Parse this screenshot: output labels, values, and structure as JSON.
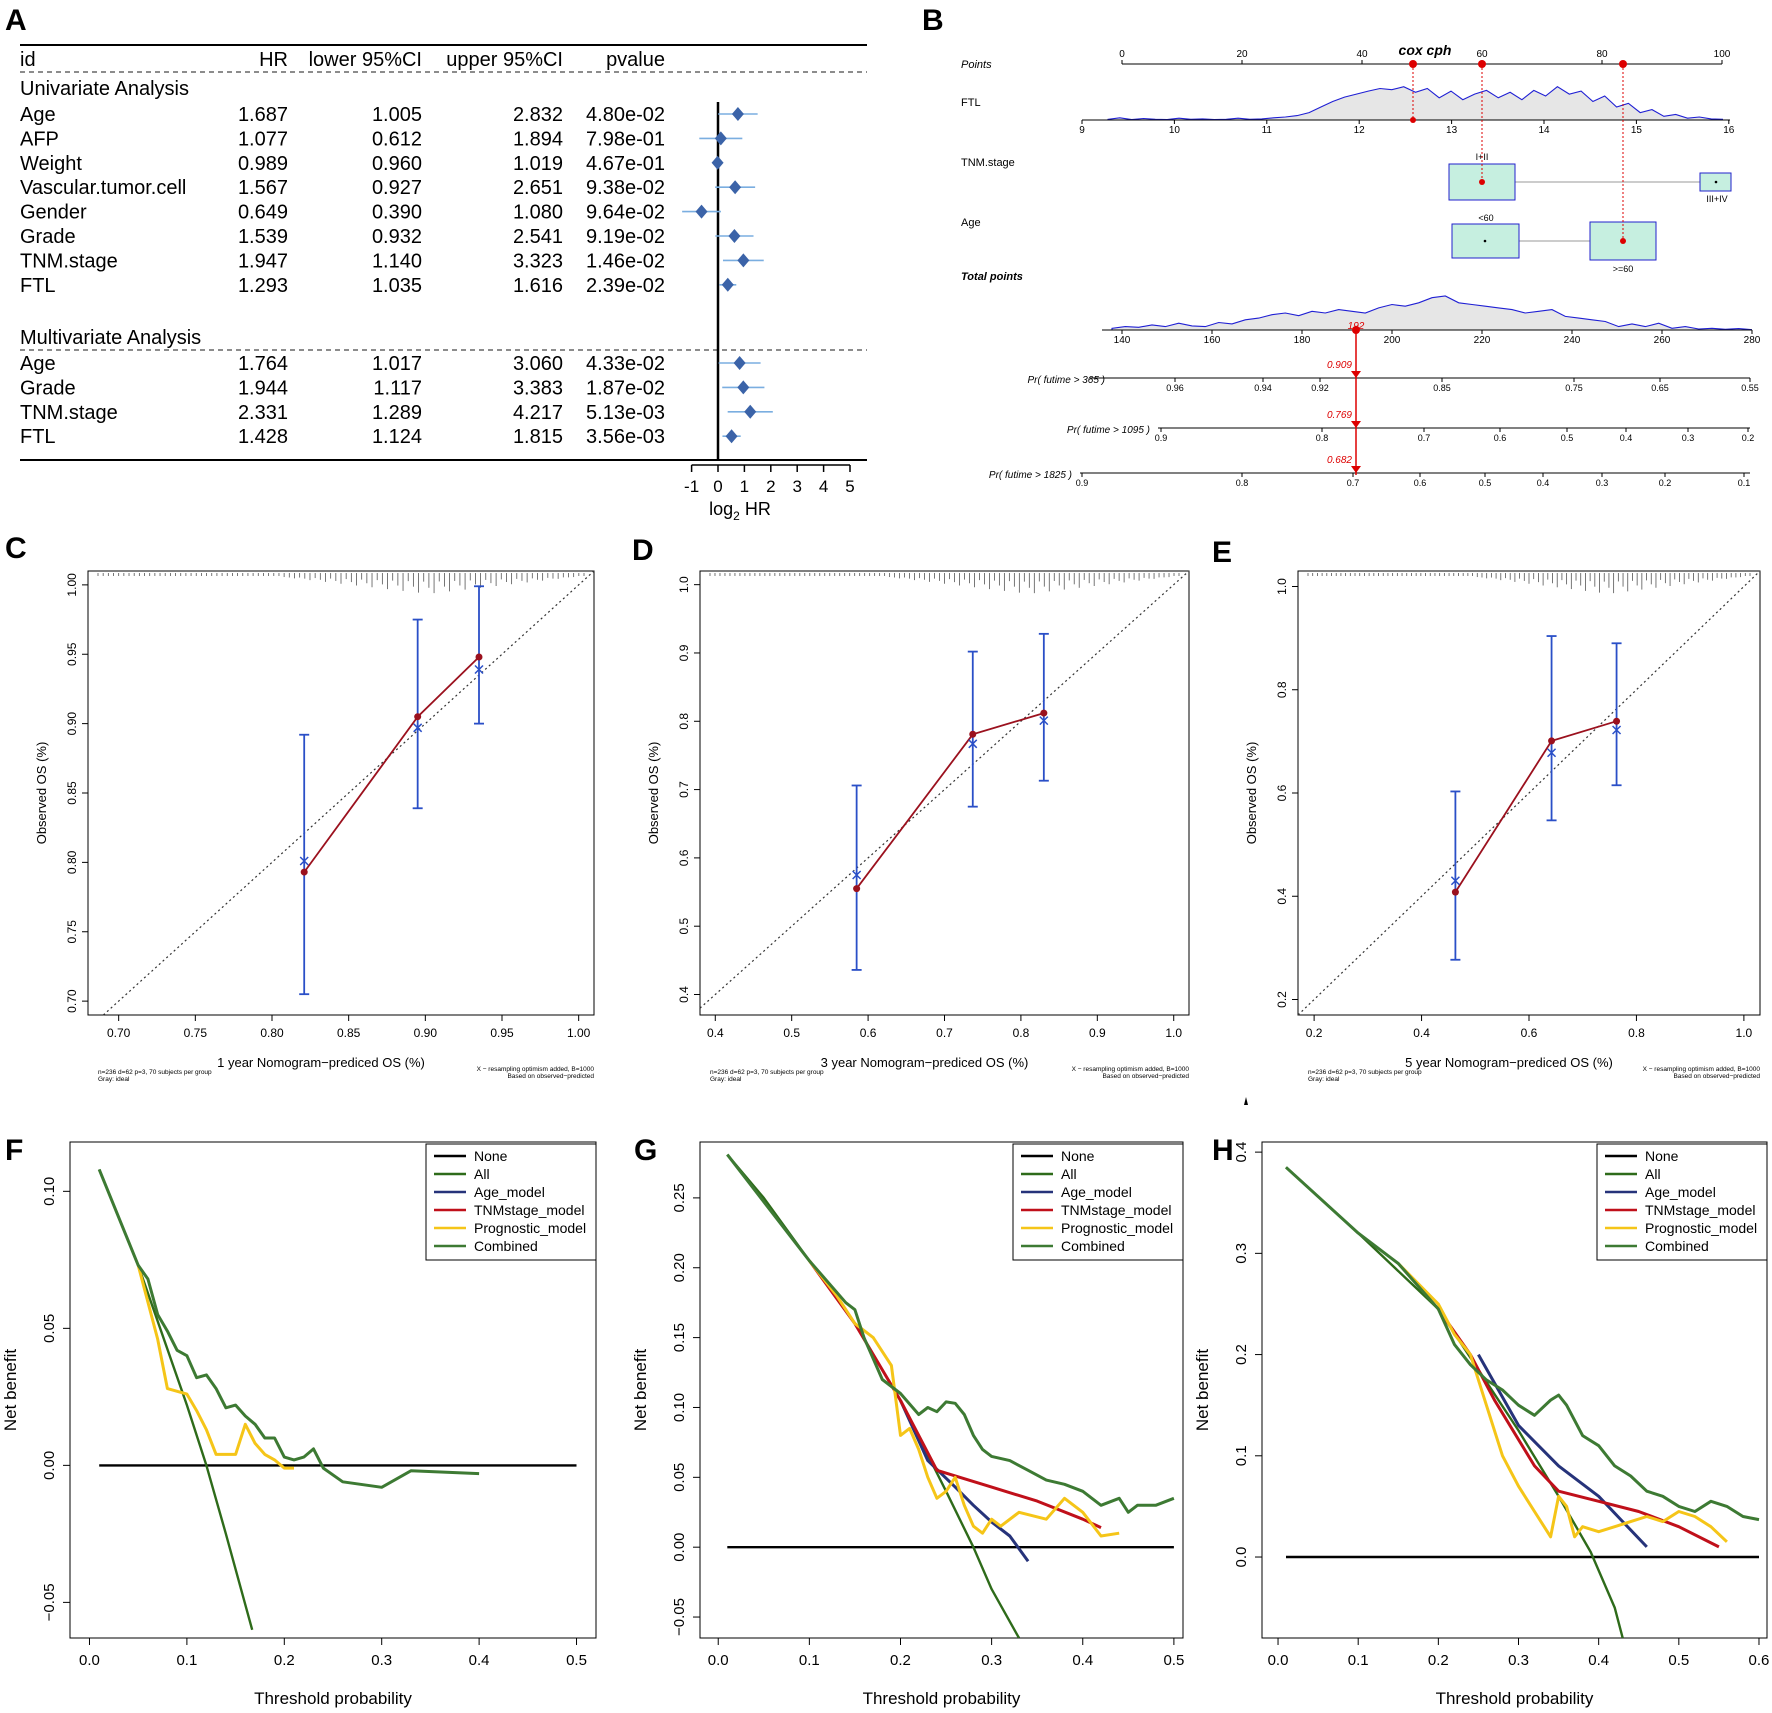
{
  "panel_letters": [
    "A",
    "B",
    "C",
    "D",
    "E",
    "F",
    "G",
    "H"
  ],
  "colors": {
    "forest_point": "#3b63a8",
    "forest_ci": "#7aaee0",
    "nomo_curve": "#1f1fd4",
    "nomo_fill": "#e6e6e6",
    "nomo_box": "#c6efe0",
    "nomo_box_border": "#2222cc",
    "nomo_red": "#dd0000",
    "calib_red": "#9b111e",
    "calib_blue": "#2a4fc7",
    "dca_none": "#000000",
    "dca_all": "#2e6b1a",
    "dca_age": "#26337a",
    "dca_tnm": "#c0101a",
    "dca_prog": "#f5c518",
    "dca_comb": "#3d7a33"
  },
  "forest": {
    "headers": {
      "id": "id",
      "hr": "HR",
      "lower": "lower 95%CI",
      "upper": "upper 95%CI",
      "p": "pvalue"
    },
    "section_uni": "Univariate Analysis",
    "section_multi": "Multivariate Analysis",
    "uni_rows": [
      {
        "id": "Age",
        "hr": "1.687",
        "lower": "1.005",
        "upper": "2.832",
        "p": "4.80e-02"
      },
      {
        "id": "AFP",
        "hr": "1.077",
        "lower": "0.612",
        "upper": "1.894",
        "p": "7.98e-01"
      },
      {
        "id": "Weight",
        "hr": "0.989",
        "lower": "0.960",
        "upper": "1.019",
        "p": "4.67e-01"
      },
      {
        "id": "Vascular.tumor.cell",
        "hr": "1.567",
        "lower": "0.927",
        "upper": "2.651",
        "p": "9.38e-02"
      },
      {
        "id": "Gender",
        "hr": "0.649",
        "lower": "0.390",
        "upper": "1.080",
        "p": "9.64e-02"
      },
      {
        "id": "Grade",
        "hr": "1.539",
        "lower": "0.932",
        "upper": "2.541",
        "p": "9.19e-02"
      },
      {
        "id": "TNM.stage",
        "hr": "1.947",
        "lower": "1.140",
        "upper": "3.323",
        "p": "1.46e-02"
      },
      {
        "id": "FTL",
        "hr": "1.293",
        "lower": "1.035",
        "upper": "1.616",
        "p": "2.39e-02"
      }
    ],
    "multi_rows": [
      {
        "id": "Age",
        "hr": "1.764",
        "lower": "1.017",
        "upper": "3.060",
        "p": "4.33e-02"
      },
      {
        "id": "Grade",
        "hr": "1.944",
        "lower": "1.117",
        "upper": "3.383",
        "p": "1.87e-02"
      },
      {
        "id": "TNM.stage",
        "hr": "2.331",
        "lower": "1.289",
        "upper": "4.217",
        "p": "5.13e-03"
      },
      {
        "id": "FTL",
        "hr": "1.428",
        "lower": "1.124",
        "upper": "1.815",
        "p": "3.56e-03"
      }
    ],
    "axis_ticks": [
      "-1",
      "0",
      "1",
      "2",
      "3",
      "4",
      "5"
    ],
    "axis_label": "log",
    "axis_label_sub": "2",
    "axis_label_end": " HR"
  },
  "nomogram": {
    "title": "cox cph",
    "row_labels": [
      "Points",
      "FTL",
      "TNM.stage",
      "Age",
      "Total points",
      "Pr( futime > 365 )",
      "Pr( futime > 1095 )",
      "Pr( futime > 1825 )"
    ],
    "points_ticks": [
      "0",
      "20",
      "40",
      "60",
      "80",
      "100"
    ],
    "ftl_ticks": [
      "9",
      "10",
      "11",
      "12",
      "13",
      "14",
      "15",
      "16"
    ],
    "tnm_levels": [
      "I+II",
      "III+IV"
    ],
    "age_levels": [
      "<60",
      ">=60"
    ],
    "total_ticks": [
      "140",
      "160",
      "180",
      "200",
      "220",
      "240",
      "260",
      "280"
    ],
    "pr365_ticks": [
      "0.96",
      "0.94",
      "0.92",
      "0.85",
      "0.75",
      "0.65",
      "0.55"
    ],
    "pr1095_ticks": [
      "0.9",
      "0.8",
      "0.7",
      "0.6",
      "0.5",
      "0.4",
      "0.3",
      "0.2"
    ],
    "pr1825_ticks": [
      "0.9",
      "0.8",
      "0.7",
      "0.6",
      "0.5",
      "0.4",
      "0.3",
      "0.2",
      "0.1"
    ],
    "total_value": "192",
    "pr_values": [
      "0.909",
      "0.769",
      "0.682"
    ]
  },
  "chart_data": [
    {
      "panel": "C",
      "type": "scatter",
      "xlabel": "1 year Nomogram−prediced OS (%)",
      "ylabel": "Observed OS (%)",
      "xlim": [
        0.68,
        1.01
      ],
      "ylim": [
        0.69,
        1.01
      ],
      "xticks": [
        "0.70",
        "0.75",
        "0.80",
        "0.85",
        "0.90",
        "0.95",
        "1.00"
      ],
      "yticks": [
        "0.70",
        "0.75",
        "0.80",
        "0.85",
        "0.90",
        "0.95",
        "1.00"
      ],
      "predicted": [
        0.821,
        0.895,
        0.935
      ],
      "observed": [
        0.793,
        0.905,
        0.948
      ],
      "corrected": [
        0.801,
        0.897,
        0.939
      ],
      "ci_low": [
        0.705,
        0.839,
        0.9
      ],
      "ci_high": [
        0.892,
        0.975,
        0.999
      ],
      "note_left": [
        "n=236 d=62 p=3, 70 subjects per group",
        "Gray: ideal"
      ],
      "note_right": [
        "X − resampling optimism added, B=1000",
        "Based on observed−predicted"
      ]
    },
    {
      "panel": "D",
      "type": "scatter",
      "xlabel": "3 year Nomogram−prediced OS (%)",
      "ylabel": "Observed OS (%)",
      "xlim": [
        0.38,
        1.02
      ],
      "ylim": [
        0.37,
        1.02
      ],
      "xticks": [
        "0.4",
        "0.5",
        "0.6",
        "0.7",
        "0.8",
        "0.9",
        "1.0"
      ],
      "yticks": [
        "0.4",
        "0.5",
        "0.6",
        "0.7",
        "0.8",
        "0.9",
        "1.0"
      ],
      "predicted": [
        0.585,
        0.737,
        0.83
      ],
      "observed": [
        0.555,
        0.781,
        0.812
      ],
      "corrected": [
        0.575,
        0.767,
        0.801
      ],
      "ci_low": [
        0.436,
        0.675,
        0.713
      ],
      "ci_high": [
        0.706,
        0.902,
        0.928
      ],
      "note_left": [
        "n=236 d=62 p=3, 70 subjects per group",
        "Gray: ideal"
      ],
      "note_right": [
        "X − resampling optimism added, B=1000",
        "Based on observed−predicted"
      ]
    },
    {
      "panel": "E",
      "type": "scatter",
      "xlabel": "5 year Nomogram−prediced OS (%)",
      "ylabel": "Observed OS (%)",
      "xlim": [
        0.17,
        1.03
      ],
      "ylim": [
        0.17,
        1.03
      ],
      "xticks": [
        "0.2",
        "0.4",
        "0.6",
        "0.8",
        "1.0"
      ],
      "yticks": [
        "0.2",
        "0.4",
        "0.6",
        "0.8",
        "1.0"
      ],
      "predicted": [
        0.463,
        0.642,
        0.763
      ],
      "observed": [
        0.408,
        0.701,
        0.739
      ],
      "corrected": [
        0.43,
        0.678,
        0.722
      ],
      "ci_low": [
        0.277,
        0.547,
        0.615
      ],
      "ci_high": [
        0.603,
        0.904,
        0.89
      ],
      "note_left": [
        "n=236 d=62 p=3, 70 subjects per group",
        "Gray: ideal"
      ],
      "note_right": [
        "X − resampling optimism added, B=1000",
        "Based on observed−predicted"
      ]
    },
    {
      "panel": "F",
      "type": "line",
      "xlabel": "Threshold probability",
      "ylabel": "Net benefit",
      "xlim": [
        -0.02,
        0.52
      ],
      "ylim": [
        -0.063,
        0.118
      ],
      "xticks": [
        "0.0",
        "0.1",
        "0.2",
        "0.3",
        "0.4",
        "0.5"
      ],
      "yticks": [
        "−0.05",
        "0.00",
        "0.05",
        "0.10"
      ],
      "legend": [
        "None",
        "All",
        "Age_model",
        "TNMstage_model",
        "Prognostic_model",
        "Combined"
      ],
      "series": [
        {
          "name": "None",
          "x": [
            0.01,
            0.5
          ],
          "y": [
            0,
            0
          ]
        },
        {
          "name": "All",
          "x": [
            0.01,
            0.05,
            0.1,
            0.12,
            0.14,
            0.167
          ],
          "y": [
            0.108,
            0.073,
            0.022,
            0.0,
            -0.025,
            -0.06
          ]
        },
        {
          "name": "Prognostic_model",
          "x": [
            0.05,
            0.07,
            0.08,
            0.1,
            0.11,
            0.12,
            0.13,
            0.15,
            0.16,
            0.17,
            0.18,
            0.19,
            0.2,
            0.21
          ],
          "y": [
            0.073,
            0.046,
            0.028,
            0.026,
            0.02,
            0.013,
            0.004,
            0.004,
            0.015,
            0.008,
            0.004,
            0.002,
            -0.001,
            -0.001
          ]
        },
        {
          "name": "Combined",
          "x": [
            0.01,
            0.05,
            0.06,
            0.07,
            0.08,
            0.09,
            0.1,
            0.11,
            0.12,
            0.13,
            0.14,
            0.15,
            0.16,
            0.17,
            0.18,
            0.19,
            0.2,
            0.21,
            0.22,
            0.23,
            0.24,
            0.26,
            0.3,
            0.33,
            0.4
          ],
          "y": [
            0.108,
            0.073,
            0.068,
            0.055,
            0.049,
            0.042,
            0.04,
            0.032,
            0.033,
            0.028,
            0.021,
            0.022,
            0.018,
            0.015,
            0.01,
            0.01,
            0.003,
            0.002,
            0.003,
            0.006,
            -0.001,
            -0.006,
            -0.008,
            -0.002,
            -0.003
          ]
        }
      ]
    },
    {
      "panel": "G",
      "type": "line",
      "xlabel": "Threshold probability",
      "ylabel": "Net benefit",
      "xlim": [
        -0.02,
        0.51
      ],
      "ylim": [
        -0.065,
        0.29
      ],
      "xticks": [
        "0.0",
        "0.1",
        "0.2",
        "0.3",
        "0.4",
        "0.5"
      ],
      "yticks": [
        "−0.05",
        "0.00",
        "0.05",
        "0.10",
        "0.15",
        "0.20",
        "0.25"
      ],
      "legend": [
        "None",
        "All",
        "Age_model",
        "TNMstage_model",
        "Prognostic_model",
        "Combined"
      ],
      "series": [
        {
          "name": "None",
          "x": [
            0.01,
            0.5
          ],
          "y": [
            0,
            0
          ]
        },
        {
          "name": "All",
          "x": [
            0.01,
            0.05,
            0.1,
            0.15,
            0.2,
            0.25,
            0.28,
            0.3,
            0.33
          ],
          "y": [
            0.281,
            0.25,
            0.205,
            0.16,
            0.105,
            0.04,
            0.0,
            -0.03,
            -0.065
          ]
        },
        {
          "name": "Age_model",
          "x": [
            0.2,
            0.23,
            0.26,
            0.28,
            0.3,
            0.32,
            0.34
          ],
          "y": [
            0.105,
            0.062,
            0.043,
            0.03,
            0.018,
            0.008,
            -0.01
          ]
        },
        {
          "name": "TNMstage_model",
          "x": [
            0.1,
            0.15,
            0.2,
            0.24,
            0.3,
            0.35,
            0.4,
            0.42
          ],
          "y": [
            0.205,
            0.16,
            0.105,
            0.055,
            0.043,
            0.033,
            0.02,
            0.014
          ]
        },
        {
          "name": "Prognostic_model",
          "x": [
            0.1,
            0.13,
            0.15,
            0.17,
            0.19,
            0.2,
            0.21,
            0.22,
            0.23,
            0.24,
            0.25,
            0.26,
            0.27,
            0.28,
            0.29,
            0.3,
            0.31,
            0.33,
            0.36,
            0.38,
            0.4,
            0.42,
            0.44
          ],
          "y": [
            0.205,
            0.18,
            0.16,
            0.15,
            0.13,
            0.08,
            0.085,
            0.07,
            0.05,
            0.035,
            0.04,
            0.05,
            0.03,
            0.015,
            0.01,
            0.02,
            0.015,
            0.025,
            0.02,
            0.035,
            0.025,
            0.008,
            0.01
          ]
        },
        {
          "name": "Combined",
          "x": [
            0.01,
            0.1,
            0.14,
            0.15,
            0.16,
            0.17,
            0.18,
            0.19,
            0.2,
            0.22,
            0.23,
            0.24,
            0.25,
            0.26,
            0.27,
            0.28,
            0.29,
            0.3,
            0.32,
            0.34,
            0.36,
            0.38,
            0.4,
            0.42,
            0.44,
            0.45,
            0.46,
            0.47,
            0.48,
            0.5
          ],
          "y": [
            0.281,
            0.205,
            0.175,
            0.17,
            0.15,
            0.135,
            0.12,
            0.115,
            0.11,
            0.095,
            0.1,
            0.097,
            0.104,
            0.103,
            0.095,
            0.08,
            0.07,
            0.065,
            0.062,
            0.055,
            0.048,
            0.045,
            0.04,
            0.03,
            0.035,
            0.025,
            0.03,
            0.03,
            0.03,
            0.035
          ]
        }
      ]
    },
    {
      "panel": "H",
      "type": "line",
      "xlabel": "Threshold probability",
      "ylabel": "Net benefit",
      "xlim": [
        -0.02,
        0.61
      ],
      "ylim": [
        -0.08,
        0.41
      ],
      "xticks": [
        "0.0",
        "0.1",
        "0.2",
        "0.3",
        "0.4",
        "0.5",
        "0.6"
      ],
      "yticks": [
        "0.0",
        "0.1",
        "0.2",
        "0.3",
        "0.4"
      ],
      "legend": [
        "None",
        "All",
        "Age_model",
        "TNMstage_model",
        "Prognostic_model",
        "Combined"
      ],
      "series": [
        {
          "name": "None",
          "x": [
            0.01,
            0.6
          ],
          "y": [
            0,
            0
          ]
        },
        {
          "name": "All",
          "x": [
            0.01,
            0.1,
            0.2,
            0.3,
            0.35,
            0.39,
            0.42,
            0.43
          ],
          "y": [
            0.385,
            0.32,
            0.245,
            0.125,
            0.06,
            0.005,
            -0.05,
            -0.08
          ]
        },
        {
          "name": "Age_model",
          "x": [
            0.25,
            0.3,
            0.35,
            0.4,
            0.43,
            0.46
          ],
          "y": [
            0.2,
            0.13,
            0.09,
            0.06,
            0.035,
            0.01
          ]
        },
        {
          "name": "TNMstage_model",
          "x": [
            0.2,
            0.24,
            0.27,
            0.32,
            0.35,
            0.4,
            0.45,
            0.5,
            0.55
          ],
          "y": [
            0.245,
            0.2,
            0.155,
            0.09,
            0.065,
            0.055,
            0.045,
            0.03,
            0.01
          ]
        },
        {
          "name": "Prognostic_model",
          "x": [
            0.15,
            0.2,
            0.22,
            0.24,
            0.26,
            0.28,
            0.3,
            0.32,
            0.34,
            0.35,
            0.36,
            0.37,
            0.38,
            0.4,
            0.42,
            0.44,
            0.46,
            0.48,
            0.5,
            0.52,
            0.54,
            0.56
          ],
          "y": [
            0.29,
            0.25,
            0.22,
            0.2,
            0.15,
            0.1,
            0.07,
            0.045,
            0.02,
            0.06,
            0.05,
            0.02,
            0.03,
            0.025,
            0.03,
            0.035,
            0.04,
            0.035,
            0.045,
            0.04,
            0.03,
            0.015
          ]
        },
        {
          "name": "Combined",
          "x": [
            0.01,
            0.1,
            0.15,
            0.2,
            0.22,
            0.24,
            0.26,
            0.28,
            0.3,
            0.32,
            0.34,
            0.35,
            0.36,
            0.38,
            0.4,
            0.42,
            0.44,
            0.46,
            0.48,
            0.5,
            0.52,
            0.54,
            0.56,
            0.58,
            0.6
          ],
          "y": [
            0.385,
            0.32,
            0.29,
            0.245,
            0.21,
            0.19,
            0.175,
            0.165,
            0.15,
            0.14,
            0.155,
            0.16,
            0.15,
            0.12,
            0.11,
            0.09,
            0.08,
            0.065,
            0.06,
            0.05,
            0.045,
            0.055,
            0.05,
            0.04,
            0.037
          ]
        }
      ]
    }
  ]
}
